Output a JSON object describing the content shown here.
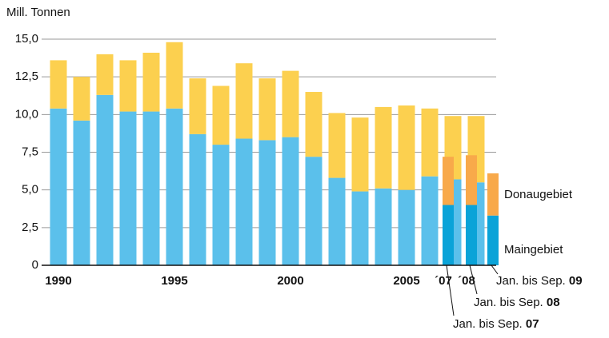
{
  "chart_data": {
    "type": "stacked_bar",
    "y_axis_label": "Mill. Tonnen",
    "ylim": [
      0,
      15
    ],
    "yticks": [
      0,
      {
        "value": 2.5,
        "label": "2,5"
      },
      {
        "value": 5,
        "label": "5,0"
      },
      {
        "value": 7.5,
        "label": "7,5"
      },
      {
        "value": 10,
        "label": "10,0"
      },
      {
        "value": 12.5,
        "label": "12,5"
      },
      {
        "value": 15,
        "label": "15,0"
      }
    ],
    "grid": true,
    "categories": [
      "1990",
      null,
      null,
      null,
      null,
      "1995",
      null,
      null,
      null,
      null,
      "2000",
      null,
      null,
      null,
      null,
      "2005",
      null,
      "´07",
      "´08"
    ],
    "series": [
      {
        "name": "Maingebiet",
        "color": "#5bc0eb",
        "values": [
          10.4,
          9.6,
          11.3,
          10.2,
          10.2,
          10.4,
          8.7,
          8.0,
          8.4,
          8.3,
          8.5,
          7.2,
          5.8,
          4.9,
          5.1,
          5.0,
          5.9,
          5.7,
          5.5
        ]
      },
      {
        "name": "Donaugebiet",
        "color": "#fcd04f",
        "values": [
          3.2,
          2.9,
          2.7,
          3.4,
          3.9,
          4.4,
          3.7,
          3.9,
          5.0,
          4.1,
          4.4,
          4.3,
          4.3,
          4.9,
          5.4,
          5.6,
          4.5,
          4.2,
          4.4
        ]
      }
    ],
    "partial_year": {
      "categories": [
        {
          "label": "Jan. bis Sep.",
          "year": "07"
        },
        {
          "label": "Jan. bis Sep.",
          "year": "08"
        },
        {
          "label": "Jan. bis Sep.",
          "year": "09"
        }
      ],
      "series": [
        {
          "color": "#0aa3d8",
          "values": [
            4.0,
            4.0,
            3.3
          ]
        },
        {
          "color": "#f8a94a",
          "values": [
            3.2,
            3.3,
            2.8
          ]
        }
      ]
    }
  }
}
